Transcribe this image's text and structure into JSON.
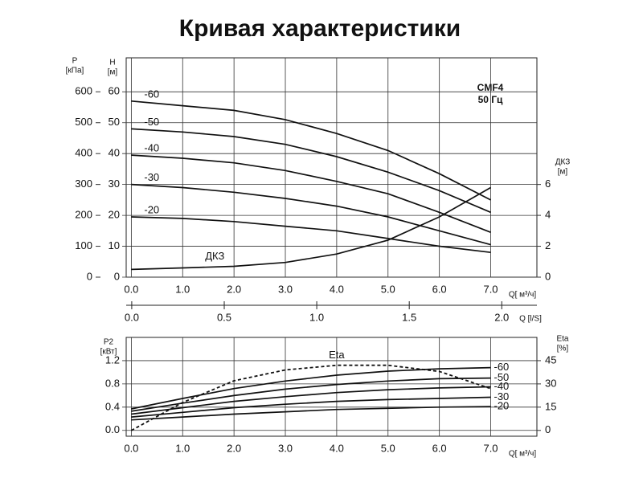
{
  "chart_data": [
    {
      "type": "line",
      "title": "Кривая характеристики",
      "annotations": [
        "CMF4",
        "50 Гц"
      ],
      "xlabel": "Q[ м³/ч]",
      "x": [
        0,
        1,
        2,
        3,
        4,
        5,
        6,
        7
      ],
      "xlim": [
        -0.1,
        7.9
      ],
      "xticks": [
        {
          "value": 0,
          "label": "0.0"
        },
        {
          "value": 1,
          "label": "1.0"
        },
        {
          "value": 2,
          "label": "2.0"
        },
        {
          "value": 3,
          "label": "3.0"
        },
        {
          "value": 4,
          "label": "4.0"
        },
        {
          "value": 5,
          "label": "5.0"
        },
        {
          "value": 6,
          "label": "6.0"
        },
        {
          "value": 7,
          "label": "7.0"
        }
      ],
      "ylabel": [
        "H",
        "[м]"
      ],
      "ylim": [
        0,
        71
      ],
      "yticks": [
        0,
        10,
        20,
        30,
        40,
        50,
        60
      ],
      "y2label": [
        "ДКЗ",
        "[м]"
      ],
      "y2lim": [
        0,
        14.2
      ],
      "y2ticks": [
        0,
        2,
        4,
        6
      ],
      "y3label": [
        "P",
        "[кПа]"
      ],
      "y3lim": [
        0,
        710
      ],
      "y3ticks": [
        0,
        100,
        200,
        300,
        400,
        500,
        600
      ],
      "x2label": "Q [l/S]",
      "x2lim": [
        -0.03,
        2.19
      ],
      "x2ticks": [
        {
          "value": 0,
          "label": "0.0"
        },
        {
          "value": 0.5,
          "label": "0.5"
        },
        {
          "value": 1,
          "label": "1.0"
        },
        {
          "value": 1.5,
          "label": "1.5"
        },
        {
          "value": 2,
          "label": "2.0"
        }
      ],
      "grid": true,
      "series": [
        {
          "name": "-60",
          "color": "#111111",
          "values": [
            57,
            55.5,
            54,
            51,
            46.5,
            41,
            33.5,
            25
          ]
        },
        {
          "name": "-50",
          "color": "#111111",
          "values": [
            48,
            47,
            45.5,
            43,
            39,
            34,
            28,
            21
          ]
        },
        {
          "name": "-40",
          "color": "#111111",
          "values": [
            39.5,
            38.5,
            37,
            34.5,
            31,
            27,
            21,
            14.5
          ]
        },
        {
          "name": "-30",
          "color": "#111111",
          "values": [
            30,
            29,
            27.5,
            25.5,
            23,
            19.5,
            15,
            10.5
          ]
        },
        {
          "name": "-20",
          "color": "#111111",
          "values": [
            19.5,
            19,
            18,
            16.5,
            15,
            12.5,
            10,
            8
          ]
        },
        {
          "name": "ДКЗ",
          "color": "#111111",
          "axis": "y2",
          "values": [
            0.5,
            0.6,
            0.7,
            0.95,
            1.5,
            2.4,
            3.9,
            5.8
          ]
        }
      ]
    },
    {
      "type": "line",
      "xlabel": "Q[ м³/ч]",
      "x": [
        0,
        1,
        2,
        3,
        4,
        5,
        6,
        7
      ],
      "xlim": [
        -0.1,
        7.9
      ],
      "xticks": [
        {
          "value": 0,
          "label": "0.0"
        },
        {
          "value": 1,
          "label": "1.0"
        },
        {
          "value": 2,
          "label": "2.0"
        },
        {
          "value": 3,
          "label": "3.0"
        },
        {
          "value": 4,
          "label": "4.0"
        },
        {
          "value": 5,
          "label": "5.0"
        },
        {
          "value": 6,
          "label": "6.0"
        },
        {
          "value": 7,
          "label": "7.0"
        }
      ],
      "ylabel": [
        "P2",
        "[кВт]"
      ],
      "ylim": [
        -0.1,
        1.6
      ],
      "yticks": [
        {
          "value": 0,
          "label": "0.0"
        },
        {
          "value": 0.4,
          "label": "0.4"
        },
        {
          "value": 0.8,
          "label": "0.8"
        },
        {
          "value": 1.2,
          "label": "1.2"
        }
      ],
      "y2label": [
        "Eta",
        "[%]"
      ],
      "y2lim": [
        -3.75,
        60
      ],
      "y2ticks": [
        0,
        15,
        30,
        45
      ],
      "grid": true,
      "series": [
        {
          "name": "-60",
          "color": "#111111",
          "values": [
            0.37,
            0.55,
            0.72,
            0.85,
            0.95,
            1.02,
            1.06,
            1.08
          ]
        },
        {
          "name": "-50",
          "color": "#111111",
          "values": [
            0.33,
            0.47,
            0.6,
            0.71,
            0.79,
            0.85,
            0.89,
            0.9
          ]
        },
        {
          "name": "-40",
          "color": "#111111",
          "values": [
            0.28,
            0.39,
            0.5,
            0.58,
            0.65,
            0.7,
            0.73,
            0.75
          ]
        },
        {
          "name": "-30",
          "color": "#111111",
          "values": [
            0.23,
            0.31,
            0.39,
            0.45,
            0.5,
            0.53,
            0.55,
            0.57
          ]
        },
        {
          "name": "-20",
          "color": "#111111",
          "values": [
            0.18,
            0.23,
            0.28,
            0.32,
            0.36,
            0.38,
            0.4,
            0.41
          ]
        },
        {
          "name": "Eta",
          "color": "#111111",
          "axis": "y2",
          "dashed": true,
          "values": [
            0,
            18,
            32,
            39,
            42,
            42,
            38,
            27
          ]
        }
      ]
    }
  ]
}
